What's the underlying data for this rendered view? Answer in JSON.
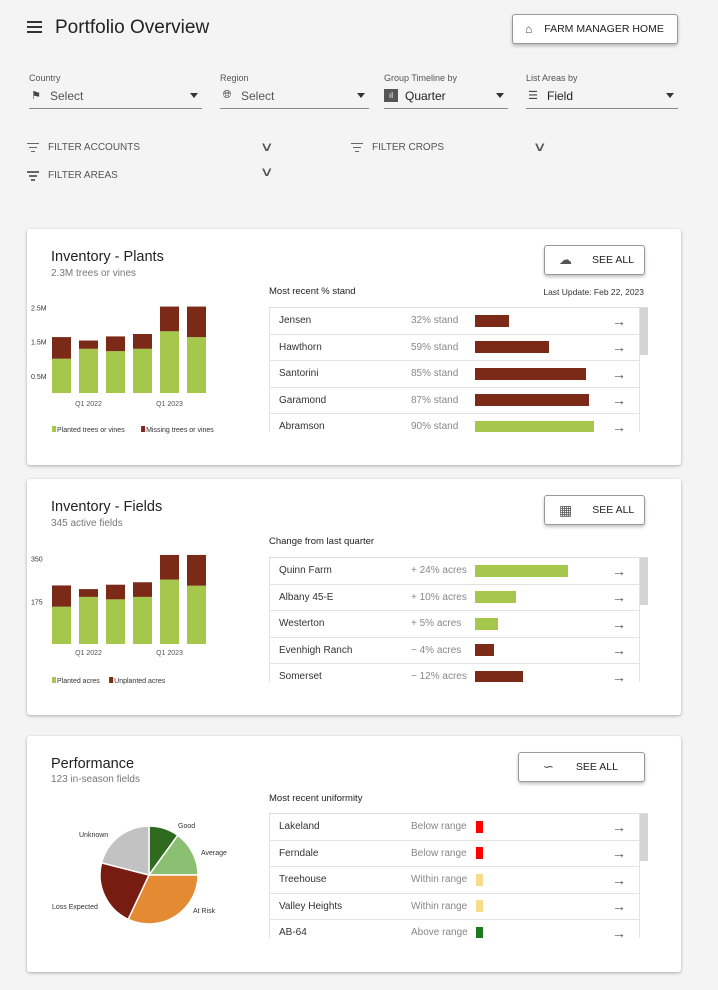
{
  "header": {
    "title": "Portfolio Overview",
    "home_button": "FARM MANAGER HOME",
    "home_icon": "home-icon",
    "menu_icon": "menu-icon"
  },
  "filters": {
    "country": {
      "label": "Country",
      "value": "Select",
      "icon": "flag-icon"
    },
    "region": {
      "label": "Region",
      "value": "Select",
      "icon": "globe-icon"
    },
    "timeline": {
      "label": "Group Timeline by",
      "value": "Quarter",
      "icon": "bar-chart-icon"
    },
    "areas": {
      "label": "List Areas by",
      "value": "Field",
      "icon": "list-icon"
    },
    "filter_accounts": "FILTER ACCOUNTS",
    "filter_crops": "FILTER CROPS",
    "filter_areas": "FILTER AREAS"
  },
  "colors": {
    "planted": "#a5c84c",
    "missing": "#7a2a16",
    "below": "#ff0000",
    "within": "#f7dc8c",
    "above": "#1f7a1f"
  },
  "plants": {
    "title": "Inventory - Plants",
    "subtitle": "2.3M trees or vines",
    "see_all": "SEE ALL",
    "see_all_icon": "tree-icon",
    "list_heading": "Most recent % stand",
    "last_update": "Last Update: Feb 22, 2023",
    "rows": [
      {
        "name": "Jensen",
        "value": "32% stand",
        "pct": 32,
        "color": "#7a2a16"
      },
      {
        "name": "Hawthorn",
        "value": "59% stand",
        "pct": 59,
        "color": "#7a2a16"
      },
      {
        "name": "Santorini",
        "value": "85% stand",
        "pct": 85,
        "color": "#7a2a16"
      },
      {
        "name": "Garamond",
        "value": "87% stand",
        "pct": 87,
        "color": "#7a2a16"
      },
      {
        "name": "Abramson",
        "value": "90% stand",
        "pct": 90,
        "color": "#a5c84c"
      }
    ]
  },
  "fields": {
    "title": "Inventory - Fields",
    "subtitle": "345 active fields",
    "see_all": "SEE ALL",
    "see_all_icon": "dashboard-icon",
    "list_heading": "Change from last quarter",
    "rows": [
      {
        "name": "Quinn Farm",
        "value": "+ 24% acres",
        "pct": 24,
        "color": "#a5c84c"
      },
      {
        "name": "Albany 45-E",
        "value": "+ 10% acres",
        "pct": 10,
        "color": "#a5c84c"
      },
      {
        "name": "Westerton",
        "value": "+ 5% acres",
        "pct": 5,
        "color": "#a5c84c"
      },
      {
        "name": "Evenhigh Ranch",
        "value": "− 4% acres",
        "pct": -4,
        "color": "#7a2a16"
      },
      {
        "name": "Somerset",
        "value": "− 12% acres",
        "pct": -12,
        "color": "#7a2a16"
      }
    ]
  },
  "performance": {
    "title": "Performance",
    "subtitle": "123 in-season fields",
    "see_all": "SEE ALL",
    "see_all_icon": "line-chart-icon",
    "list_heading": "Most recent uniformity",
    "rows": [
      {
        "name": "Lakeland",
        "value": "Below range",
        "color": "#ff0000"
      },
      {
        "name": "Ferndale",
        "value": "Below range",
        "color": "#ff0000"
      },
      {
        "name": "Treehouse",
        "value": "Within range",
        "color": "#f7dc8c"
      },
      {
        "name": "Valley Heights",
        "value": "Within range",
        "color": "#f7dc8c"
      },
      {
        "name": "AB-64",
        "value": "Above range",
        "color": "#1f7a1f"
      }
    ]
  },
  "chart_data": [
    {
      "type": "bar",
      "stacked": true,
      "categories": [
        "",
        "Q1 2022",
        "",
        "",
        "Q1 2023",
        ""
      ],
      "yticks": [
        "0.5M",
        "1.5M",
        "2.5M"
      ],
      "ytick_values": [
        0.5,
        1.5,
        2.5
      ],
      "ylim": [
        0,
        2.6
      ],
      "series": [
        {
          "name": "Planted trees or vines",
          "color": "#a5c84c",
          "values": [
            1.0,
            1.29,
            1.22,
            1.29,
            1.8,
            1.63
          ]
        },
        {
          "name": "Missing trees or vines",
          "color": "#7a2a16",
          "values": [
            0.63,
            0.24,
            0.43,
            0.43,
            0.72,
            0.89
          ]
        }
      ],
      "legend": "bottom"
    },
    {
      "type": "bar",
      "stacked": true,
      "categories": [
        "",
        "Q1 2022",
        "",
        "",
        "Q1 2023",
        ""
      ],
      "yticks": [
        "175",
        "350"
      ],
      "ytick_values": [
        175,
        350
      ],
      "ylim": [
        0,
        370
      ],
      "series": [
        {
          "name": "Planted acres",
          "color": "#a5c84c",
          "values": [
            153,
            193,
            183,
            193,
            264,
            239
          ]
        },
        {
          "name": "Unplanted acres",
          "color": "#7a2a16",
          "values": [
            87,
            32,
            60,
            60,
            101,
            126
          ]
        }
      ],
      "legend": "bottom"
    },
    {
      "type": "pie",
      "slices": [
        {
          "label": "Good",
          "value": 10,
          "color": "#2f6b1e"
        },
        {
          "label": "Average",
          "value": 15,
          "color": "#8bbf72"
        },
        {
          "label": "At Risk",
          "value": 32,
          "color": "#e48a33"
        },
        {
          "label": "Loss Expected",
          "value": 22,
          "color": "#771c10"
        },
        {
          "label": "Unknown",
          "value": 21,
          "color": "#c2c2c2"
        }
      ]
    }
  ]
}
